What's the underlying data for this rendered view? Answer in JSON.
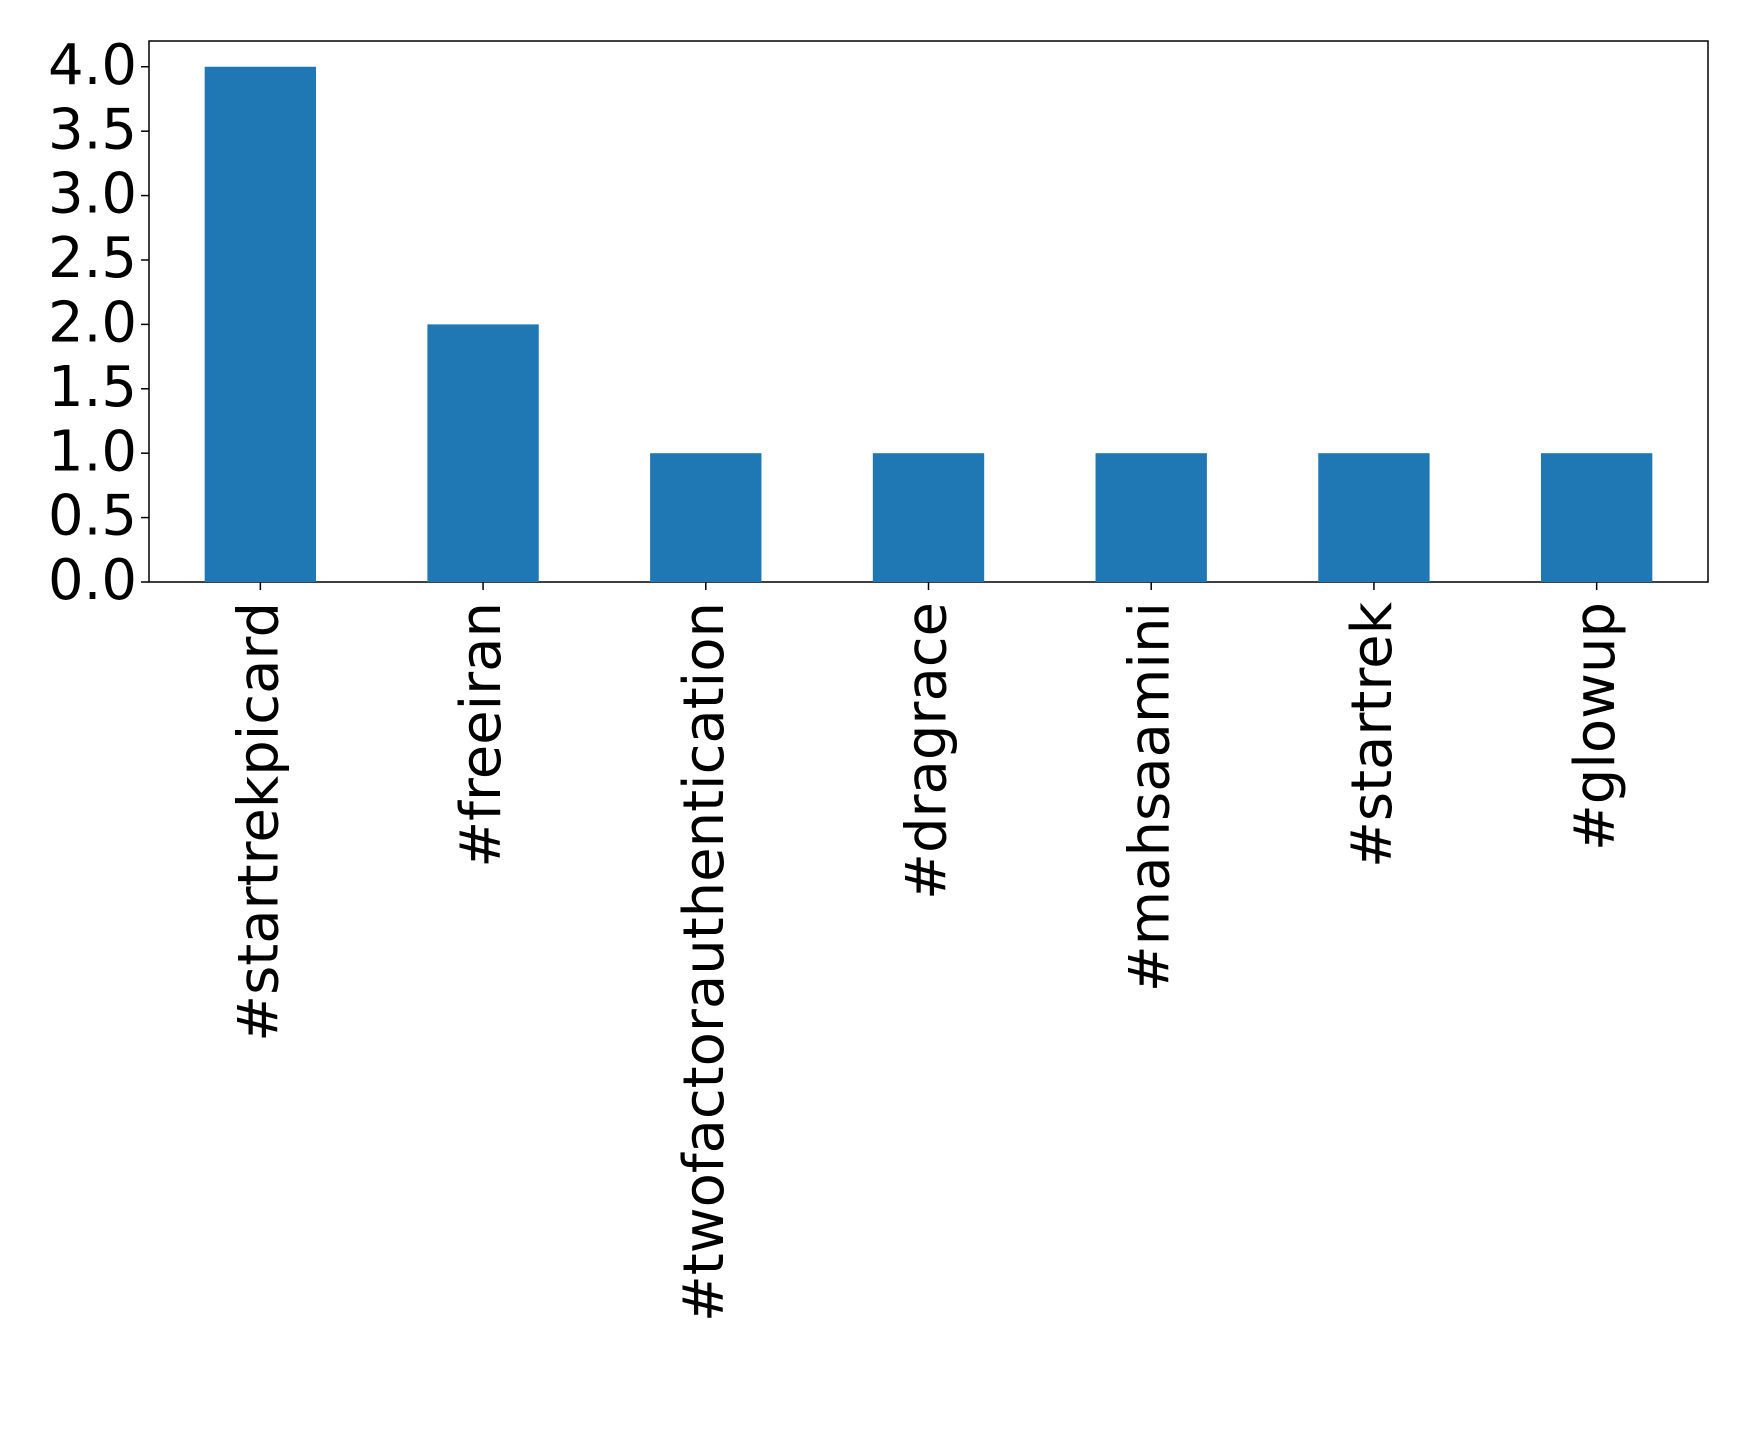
{
  "chart_data": {
    "type": "bar",
    "categories": [
      "#startrekpicard",
      "#freeiran",
      "#twofactorauthentication",
      "#dragrace",
      "#mahsaamini",
      "#startrek",
      "#glowup"
    ],
    "values": [
      4,
      2,
      1,
      1,
      1,
      1,
      1
    ],
    "color": "#1f77b4",
    "ylim": [
      0,
      4.2
    ],
    "yticks": [
      {
        "value": 0,
        "label": "0.0"
      },
      {
        "value": 0.5,
        "label": "0.5"
      },
      {
        "value": 1,
        "label": "1.0"
      },
      {
        "value": 1.5,
        "label": "1.5"
      },
      {
        "value": 2,
        "label": "2.0"
      },
      {
        "value": 2.5,
        "label": "2.5"
      },
      {
        "value": 3,
        "label": "3.0"
      },
      {
        "value": 3.5,
        "label": "3.5"
      },
      {
        "value": 4,
        "label": "4.0"
      }
    ],
    "grid": false
  }
}
